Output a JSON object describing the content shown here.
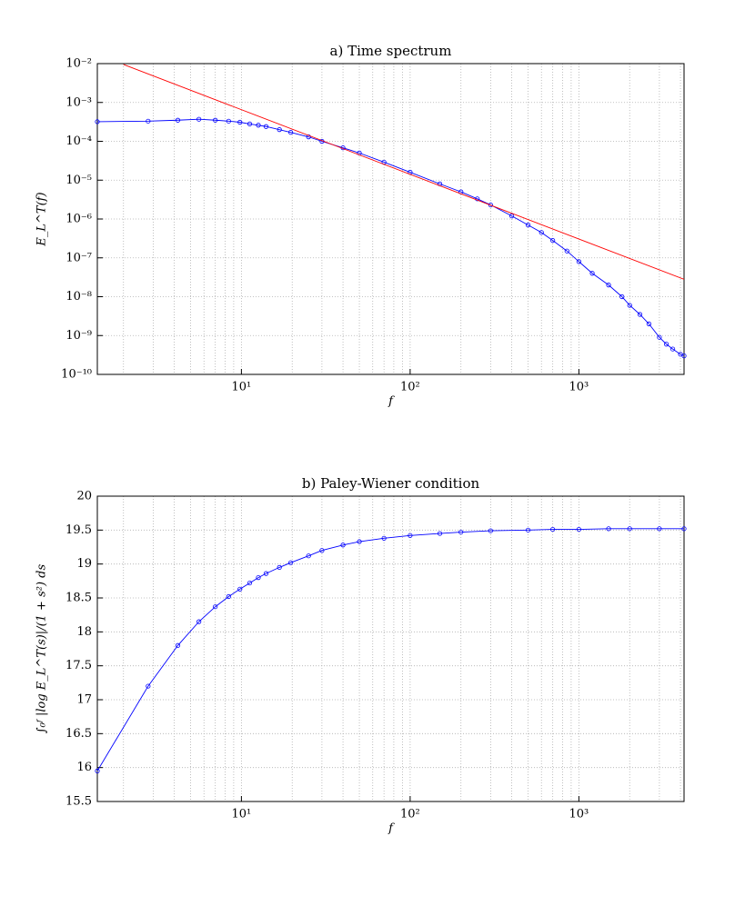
{
  "chart_data": [
    {
      "type": "line",
      "title": "a) Time spectrum",
      "xlabel": "f",
      "ylabel": "E_L^T(f)",
      "xscale": "log",
      "yscale": "log",
      "grid": true,
      "xlim": [
        1.4,
        4200
      ],
      "ylim": [
        1e-10,
        0.01
      ],
      "xticks": [
        {
          "value": 10,
          "label": "10¹"
        },
        {
          "value": 100,
          "label": "10²"
        },
        {
          "value": 1000,
          "label": "10³"
        }
      ],
      "xminorticks": [
        2,
        3,
        4,
        5,
        6,
        7,
        8,
        9,
        20,
        30,
        40,
        50,
        60,
        70,
        80,
        90,
        200,
        300,
        400,
        500,
        600,
        700,
        800,
        900,
        2000,
        3000,
        4000
      ],
      "yticks": [
        {
          "value": 1e-10,
          "label": "10⁻¹⁰"
        },
        {
          "value": 1e-09,
          "label": "10⁻⁹"
        },
        {
          "value": 1e-08,
          "label": "10⁻⁸"
        },
        {
          "value": 1e-07,
          "label": "10⁻⁷"
        },
        {
          "value": 1e-06,
          "label": "10⁻⁶"
        },
        {
          "value": 1e-05,
          "label": "10⁻⁵"
        },
        {
          "value": 0.0001,
          "label": "10⁻⁴"
        },
        {
          "value": 0.001,
          "label": "10⁻³"
        },
        {
          "value": 0.01,
          "label": "10⁻²"
        }
      ],
      "series": [
        {
          "color": "#0000ff",
          "marker": "circle",
          "x": [
            1.4,
            2.8,
            4.2,
            5.6,
            7,
            8.4,
            9.8,
            11.2,
            12.6,
            14,
            16.8,
            19.6,
            25,
            30,
            40,
            50,
            70,
            100,
            150,
            200,
            250,
            300,
            400,
            500,
            600,
            700,
            850,
            1000,
            1200,
            1500,
            1800,
            2000,
            2300,
            2600,
            3000,
            3300,
            3600,
            4000,
            4200
          ],
          "values": [
            0.00032,
            0.00033,
            0.00035,
            0.00037,
            0.00035,
            0.00033,
            0.00031,
            0.00028,
            0.00026,
            0.00024,
            0.0002,
            0.00017,
            0.00013,
            0.0001,
            6.8e-05,
            5e-05,
            2.9e-05,
            1.6e-05,
            8e-06,
            5e-06,
            3.3e-06,
            2.3e-06,
            1.2e-06,
            7e-07,
            4.5e-07,
            2.8e-07,
            1.5e-07,
            8e-08,
            4e-08,
            2e-08,
            1e-08,
            6e-09,
            3.5e-09,
            2e-09,
            9e-10,
            6e-10,
            4.5e-10,
            3.3e-10,
            3e-10
          ]
        },
        {
          "color": "#ff0000",
          "marker": "none",
          "x": [
            2,
            4200
          ],
          "values": [
            0.0095,
            2.8e-08
          ]
        }
      ]
    },
    {
      "type": "line",
      "title": "b) Paley-Wiener condition",
      "xlabel": "f",
      "ylabel": "∫₀ᶠ |log E_L^T(s)|/(1 + s²) ds",
      "xscale": "log",
      "yscale": "linear",
      "grid": true,
      "xlim": [
        1.4,
        4200
      ],
      "ylim": [
        15.5,
        20
      ],
      "xticks": [
        {
          "value": 10,
          "label": "10¹"
        },
        {
          "value": 100,
          "label": "10²"
        },
        {
          "value": 1000,
          "label": "10³"
        }
      ],
      "xminorticks": [
        2,
        3,
        4,
        5,
        6,
        7,
        8,
        9,
        20,
        30,
        40,
        50,
        60,
        70,
        80,
        90,
        200,
        300,
        400,
        500,
        600,
        700,
        800,
        900,
        2000,
        3000,
        4000
      ],
      "yticks": [
        15.5,
        16,
        16.5,
        17,
        17.5,
        18,
        18.5,
        19,
        19.5,
        20
      ],
      "series": [
        {
          "color": "#0000ff",
          "marker": "circle",
          "x": [
            1.4,
            2.8,
            4.2,
            5.6,
            7,
            8.4,
            9.8,
            11.2,
            12.6,
            14,
            16.8,
            19.6,
            25,
            30,
            40,
            50,
            70,
            100,
            150,
            200,
            300,
            500,
            700,
            1000,
            1500,
            2000,
            3000,
            4200
          ],
          "values": [
            15.95,
            17.2,
            17.8,
            18.15,
            18.37,
            18.52,
            18.63,
            18.72,
            18.8,
            18.86,
            18.95,
            19.02,
            19.12,
            19.2,
            19.28,
            19.33,
            19.38,
            19.42,
            19.45,
            19.47,
            19.49,
            19.5,
            19.51,
            19.51,
            19.52,
            19.52,
            19.52,
            19.52
          ]
        }
      ]
    }
  ]
}
